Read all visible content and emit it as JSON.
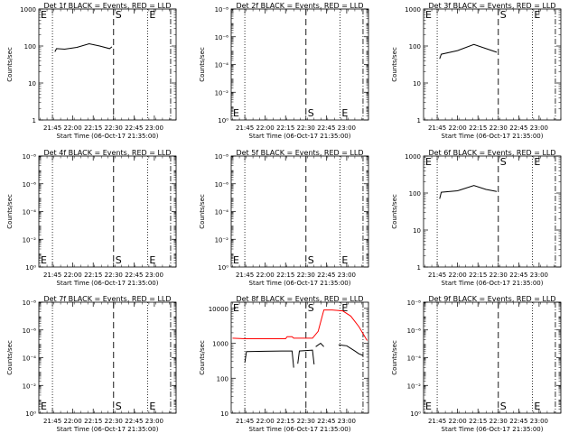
{
  "page": {
    "width": 640,
    "height": 480
  },
  "colors": {
    "events": "#000000",
    "lld": "#ff0000",
    "axis": "#000000",
    "background": "#ffffff"
  },
  "chart_data": [
    {
      "type": "line",
      "detector": "1f",
      "title": "Det 1f BLACK = Events, RED = LLD",
      "xlabel": "Start Time (06-Oct-17 21:35:00)",
      "ylabel": "Counts/sec",
      "x_ticks": [
        "21:45",
        "22:00",
        "22:15",
        "22:30",
        "22:45",
        "23:00"
      ],
      "y_scale": "log",
      "y_ticks": [
        "1",
        "10",
        "100",
        "1000"
      ],
      "ylim": [
        1,
        1000
      ],
      "markers": {
        "S": "S",
        "E_left": "E",
        "E_right": "E"
      },
      "marker_pos": "top",
      "series": [
        {
          "color": "black",
          "segments": [
            [
              [
                21.78,
                70
              ],
              [
                21.8,
                85
              ],
              [
                21.9,
                82
              ],
              [
                22.05,
                92
              ],
              [
                22.2,
                115
              ],
              [
                22.33,
                100
              ],
              [
                22.45,
                85
              ],
              [
                22.48,
                95
              ]
            ]
          ]
        }
      ]
    },
    {
      "type": "line",
      "detector": "2f",
      "title": "Det 2f BLACK = Events, RED = LLD",
      "xlabel": "Start Time (06-Oct-17 21:35:00)",
      "ylabel": "Counts/sec",
      "x_ticks": [
        "21:45",
        "22:00",
        "22:15",
        "22:30",
        "22:45",
        "23:00"
      ],
      "y_scale": "log",
      "y_ticks": [
        "10⁰",
        "10⁻²",
        "10⁻⁴",
        "10⁻⁶",
        "10⁻⁸"
      ],
      "ylim": [
        1,
        1e-08
      ],
      "markers": {
        "S": "S",
        "E_left": "E",
        "E_right": "E"
      },
      "marker_pos": "bottom",
      "series": []
    },
    {
      "type": "line",
      "detector": "3f",
      "title": "Det 3f BLACK = Events, RED = LLD",
      "xlabel": "Start Time (06-Oct-17 21:35:00)",
      "ylabel": "Counts/sec",
      "x_ticks": [
        "21:45",
        "22:00",
        "22:15",
        "22:30",
        "22:45",
        "23:00"
      ],
      "y_scale": "log",
      "y_ticks": [
        "1",
        "10",
        "100",
        "1000"
      ],
      "ylim": [
        1,
        1000
      ],
      "markers": {
        "S": "S",
        "E_left": "E",
        "E_right": "E"
      },
      "marker_pos": "top",
      "series": [
        {
          "color": "black",
          "segments": [
            [
              [
                21.78,
                45
              ],
              [
                21.8,
                60
              ],
              [
                22.0,
                75
              ],
              [
                22.2,
                110
              ],
              [
                22.35,
                85
              ],
              [
                22.48,
                68
              ]
            ]
          ]
        }
      ]
    },
    {
      "type": "line",
      "detector": "4f",
      "title": "Det 4f BLACK = Events, RED = LLD",
      "xlabel": "Start Time (06-Oct-17 21:35:00)",
      "ylabel": "Counts/sec",
      "x_ticks": [
        "21:45",
        "22:00",
        "22:15",
        "22:30",
        "22:45",
        "23:00"
      ],
      "y_scale": "log",
      "y_ticks": [
        "10⁰",
        "10⁻²",
        "10⁻⁴",
        "10⁻⁶",
        "10⁻⁸"
      ],
      "ylim": [
        1,
        1e-08
      ],
      "markers": {
        "S": "S",
        "E_left": "E",
        "E_right": "E"
      },
      "marker_pos": "bottom",
      "series": []
    },
    {
      "type": "line",
      "detector": "5f",
      "title": "Det 5f BLACK = Events, RED = LLD",
      "xlabel": "Start Time (06-Oct-17 21:35:00)",
      "ylabel": "Counts/sec",
      "x_ticks": [
        "21:45",
        "22:00",
        "22:15",
        "22:30",
        "22:45",
        "23:00"
      ],
      "y_scale": "log",
      "y_ticks": [
        "10⁰",
        "10⁻²",
        "10⁻⁴",
        "10⁻⁶",
        "10⁻⁸"
      ],
      "ylim": [
        1,
        1e-08
      ],
      "markers": {
        "S": "S",
        "E_left": "E",
        "E_right": "E"
      },
      "marker_pos": "bottom",
      "series": []
    },
    {
      "type": "line",
      "detector": "6f",
      "title": "Det 6f BLACK = Events, RED = LLD",
      "xlabel": "Start Time (06-Oct-17 21:35:00)",
      "ylabel": "Counts/sec",
      "x_ticks": [
        "21:45",
        "22:00",
        "22:15",
        "22:30",
        "22:45",
        "23:00"
      ],
      "y_scale": "log",
      "y_ticks": [
        "1",
        "10",
        "100",
        "1000"
      ],
      "ylim": [
        1,
        1000
      ],
      "markers": {
        "S": "S",
        "E_left": "E",
        "E_right": "E"
      },
      "marker_pos": "top",
      "series": [
        {
          "color": "black",
          "segments": [
            [
              [
                21.78,
                70
              ],
              [
                21.8,
                105
              ],
              [
                22.0,
                115
              ],
              [
                22.2,
                160
              ],
              [
                22.35,
                125
              ],
              [
                22.48,
                110
              ]
            ]
          ]
        }
      ]
    },
    {
      "type": "line",
      "detector": "7f",
      "title": "Det 7f BLACK = Events, RED = LLD",
      "xlabel": "Start Time (06-Oct-17 21:35:00)",
      "ylabel": "Counts/sec",
      "x_ticks": [
        "21:45",
        "22:00",
        "22:15",
        "22:30",
        "22:45",
        "23:00"
      ],
      "y_scale": "log",
      "y_ticks": [
        "10⁰",
        "10⁻²",
        "10⁻⁴",
        "10⁻⁶",
        "10⁻⁸"
      ],
      "ylim": [
        1,
        1e-08
      ],
      "markers": {
        "S": "S",
        "E_left": "E",
        "E_right": "E"
      },
      "marker_pos": "bottom",
      "series": []
    },
    {
      "type": "line",
      "detector": "8f",
      "title": "Det 8f BLACK = Events, RED = LLD",
      "xlabel": "Start Time (06-Oct-17 21:35:00)",
      "ylabel": "Counts/sec",
      "x_ticks": [
        "21:45",
        "22:00",
        "22:15",
        "22:30",
        "22:45",
        "23:00"
      ],
      "y_scale": "log",
      "y_ticks": [
        "10",
        "100",
        "1000",
        "10000"
      ],
      "ylim": [
        10,
        15000
      ],
      "markers": {
        "S": "S",
        "E_left": "E",
        "E_right": "E"
      },
      "marker_pos": "top",
      "series": [
        {
          "color": "red",
          "segments": [
            [
              [
                21.6,
                1400
              ],
              [
                21.75,
                1350
              ],
              [
                22.0,
                1350
              ],
              [
                22.25,
                1350
              ],
              [
                22.27,
                1550
              ],
              [
                22.33,
                1550
              ],
              [
                22.35,
                1400
              ],
              [
                22.58,
                1400
              ],
              [
                22.65,
                2200
              ],
              [
                22.72,
                9000
              ],
              [
                22.82,
                9000
              ],
              [
                22.95,
                8500
              ],
              [
                23.05,
                6000
              ],
              [
                23.15,
                3000
              ],
              [
                23.25,
                1200
              ]
            ]
          ]
        },
        {
          "color": "black",
          "segments": [
            [
              [
                21.75,
                280
              ],
              [
                21.77,
                580
              ],
              [
                22.0,
                590
              ],
              [
                22.2,
                600
              ],
              [
                22.33,
                600
              ],
              [
                22.35,
                200
              ]
            ],
            [
              [
                22.4,
                260
              ],
              [
                22.42,
                600
              ],
              [
                22.58,
                640
              ],
              [
                22.6,
                250
              ]
            ],
            [
              [
                22.62,
                800
              ],
              [
                22.68,
                1000
              ],
              [
                22.72,
                800
              ]
            ],
            [
              [
                22.9,
                900
              ],
              [
                23.0,
                850
              ],
              [
                23.1,
                600
              ],
              [
                23.15,
                500
              ],
              [
                23.2,
                450
              ]
            ]
          ]
        }
      ]
    },
    {
      "type": "line",
      "detector": "9f",
      "title": "Det 9f BLACK = Events, RED = LLD",
      "xlabel": "Start Time (06-Oct-17 21:35:00)",
      "ylabel": "Counts/sec",
      "x_ticks": [
        "21:45",
        "22:00",
        "22:15",
        "22:30",
        "22:45",
        "23:00"
      ],
      "y_scale": "log",
      "y_ticks": [
        "10⁰",
        "10⁻²",
        "10⁻⁴",
        "10⁻⁶",
        "10⁻⁸"
      ],
      "ylim": [
        1,
        1e-08
      ],
      "markers": {
        "S": "S",
        "E_left": "E",
        "E_right": "E"
      },
      "marker_pos": "bottom",
      "series": []
    }
  ]
}
